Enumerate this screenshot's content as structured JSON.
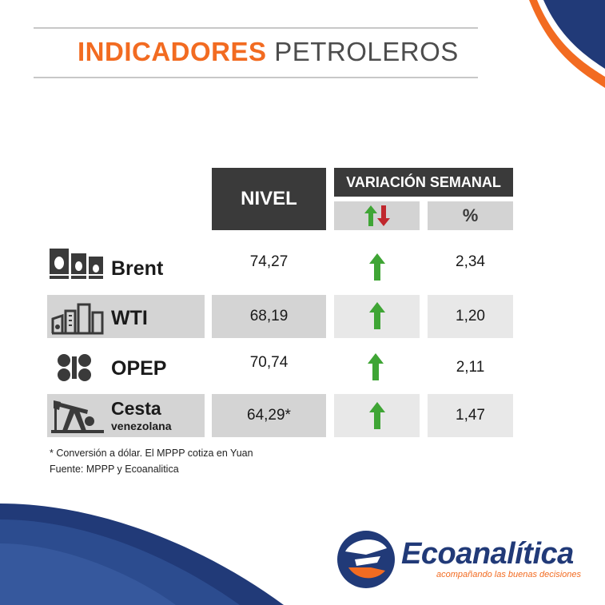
{
  "title": {
    "part1": "INDICADORES",
    "part2": "PETROLEROS"
  },
  "headers": {
    "nivel": "NIVEL",
    "variacion": "VARIACIÓN SEMANAL",
    "percent": "%"
  },
  "rows": [
    {
      "name": "Brent",
      "subname": "",
      "nivel": "74,27",
      "trend": "up",
      "percent": "2,34",
      "icon": "oil-barrels-icon",
      "shaded": false
    },
    {
      "name": "WTI",
      "subname": "",
      "nivel": "68,19",
      "trend": "up",
      "percent": "1,20",
      "icon": "refinery-icon",
      "shaded": true
    },
    {
      "name": "OPEP",
      "subname": "",
      "nivel": "70,74",
      "trend": "up",
      "percent": "2,11",
      "icon": "opec-logo-icon",
      "shaded": false
    },
    {
      "name": "Cesta",
      "subname": "venezolana",
      "nivel": "64,29*",
      "trend": "up",
      "percent": "1,47",
      "icon": "oil-pump-icon",
      "shaded": true
    }
  ],
  "notes": {
    "line1": "* Conversión a dólar. El MPPP cotiza en Yuan",
    "line2": "Fuente: MPPP y Ecoanalitica"
  },
  "brand": {
    "name": "Ecoanalítica",
    "tagline": "acompañando las buenas decisiones"
  },
  "colors": {
    "accent_orange": "#f26b21",
    "navy": "#213a78",
    "arrow_up": "#3fa535",
    "arrow_down": "#c0272d",
    "header_dark": "#3a3a3a",
    "row_gray": "#d4d4d4"
  }
}
